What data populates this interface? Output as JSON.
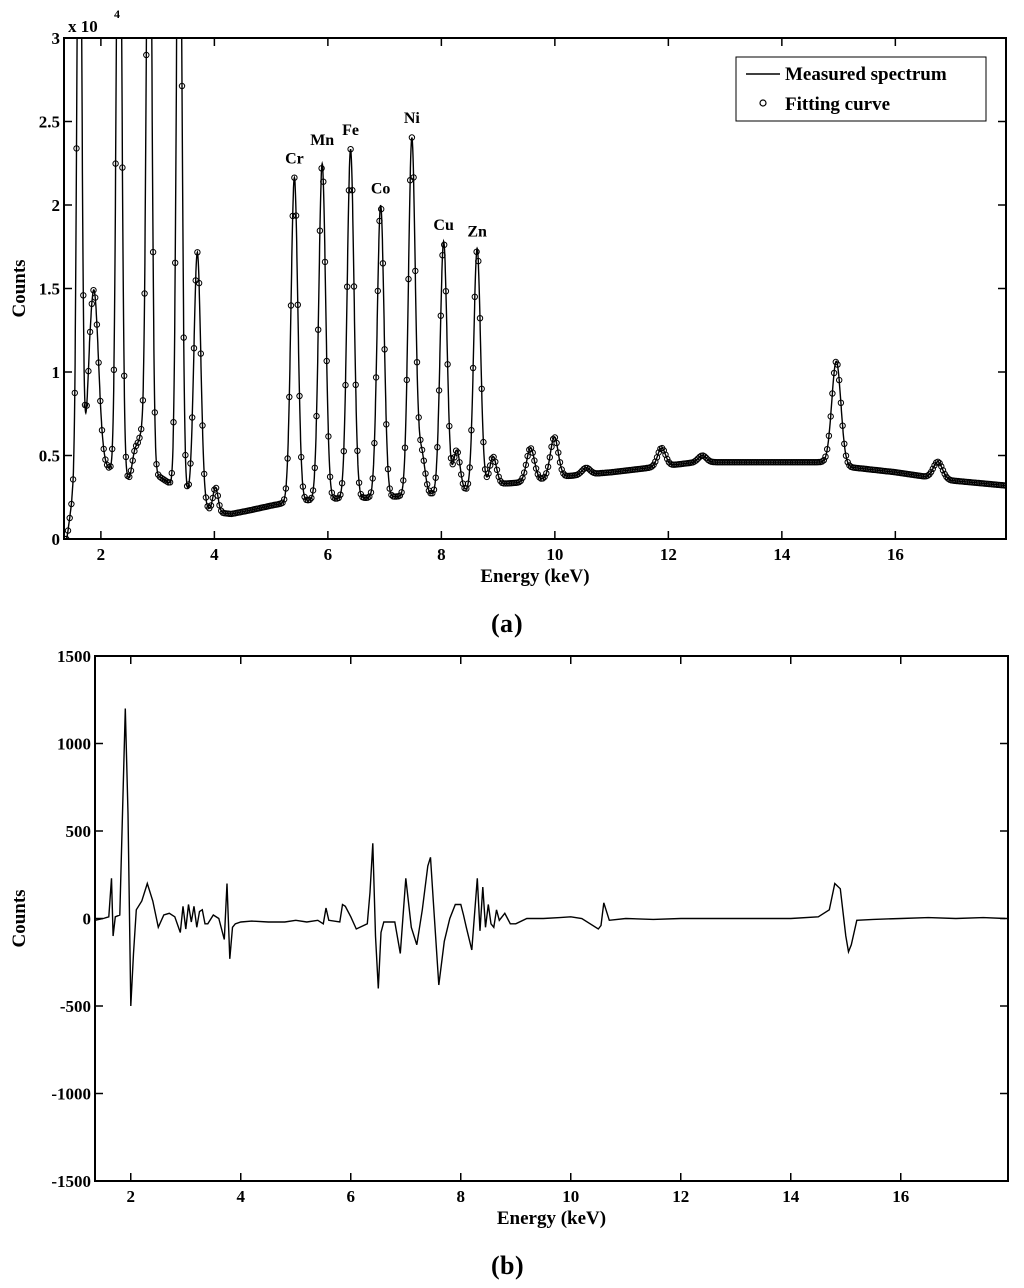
{
  "chart_data": [
    {
      "panel": "(a)",
      "type": "line",
      "xlabel": "Energy (keV)",
      "ylabel": "Counts",
      "exponent_label": "x 10",
      "exponent_power": "4",
      "xlim": [
        1.35,
        17.95
      ],
      "ylim": [
        0,
        30000
      ],
      "xticks": [
        2,
        4,
        6,
        8,
        10,
        12,
        14,
        16
      ],
      "yticks": [
        0,
        5000,
        10000,
        15000,
        20000,
        25000,
        30000
      ],
      "ytick_labels": [
        "0",
        "0.5",
        "1",
        "1.5",
        "2",
        "2.5",
        "3"
      ],
      "legend": {
        "position": "top-right",
        "entries": [
          {
            "label": "Measured spectrum",
            "marker": "line"
          },
          {
            "label": "Fitting curve",
            "marker": "circle"
          }
        ]
      },
      "background": [
        [
          1.4,
          0
        ],
        [
          1.5,
          2500
        ],
        [
          1.6,
          2900
        ],
        [
          1.8,
          6000
        ],
        [
          2.0,
          4500
        ],
        [
          2.5,
          3500
        ],
        [
          3.0,
          3800
        ],
        [
          3.5,
          2700
        ],
        [
          3.8,
          1900
        ],
        [
          4.0,
          1600
        ],
        [
          4.3,
          1500
        ],
        [
          4.6,
          1700
        ],
        [
          5.0,
          2000
        ],
        [
          5.3,
          2200
        ],
        [
          5.6,
          2300
        ],
        [
          6.0,
          2400
        ],
        [
          7.0,
          2500
        ],
        [
          8.0,
          2700
        ],
        [
          8.5,
          2900
        ],
        [
          9.0,
          3300
        ],
        [
          9.5,
          3400
        ],
        [
          10.0,
          3700
        ],
        [
          11.0,
          4000
        ],
        [
          12.0,
          4400
        ],
        [
          12.5,
          4600
        ],
        [
          13.0,
          4600
        ],
        [
          14.0,
          4600
        ],
        [
          14.7,
          4600
        ],
        [
          15.2,
          4300
        ],
        [
          16.0,
          4000
        ],
        [
          17.0,
          3500
        ],
        [
          17.95,
          3200
        ]
      ],
      "peaks": [
        {
          "energy": 1.62,
          "height": 45000,
          "sigma": 0.04
        },
        {
          "energy": 1.88,
          "height": 9500,
          "sigma": 0.08
        },
        {
          "energy": 2.32,
          "height": 45000,
          "sigma": 0.045
        },
        {
          "energy": 2.6,
          "height": 1500,
          "sigma": 0.05
        },
        {
          "energy": 2.72,
          "height": 2500,
          "sigma": 0.06
        },
        {
          "energy": 2.85,
          "height": 45000,
          "sigma": 0.045
        },
        {
          "energy": 3.38,
          "height": 45000,
          "sigma": 0.045
        },
        {
          "energy": 3.7,
          "height": 15000,
          "sigma": 0.06
        },
        {
          "energy": 4.02,
          "height": 1500,
          "sigma": 0.045
        },
        {
          "energy": 5.41,
          "height": 19400,
          "sigma": 0.06
        },
        {
          "energy": 5.9,
          "height": 20100,
          "sigma": 0.06
        },
        {
          "energy": 6.4,
          "height": 20900,
          "sigma": 0.06
        },
        {
          "energy": 6.93,
          "height": 17500,
          "sigma": 0.06
        },
        {
          "energy": 7.48,
          "height": 21400,
          "sigma": 0.06
        },
        {
          "energy": 7.65,
          "height": 2500,
          "sigma": 0.06
        },
        {
          "energy": 8.04,
          "height": 15100,
          "sigma": 0.06
        },
        {
          "energy": 8.27,
          "height": 2500,
          "sigma": 0.06
        },
        {
          "energy": 8.63,
          "height": 14400,
          "sigma": 0.06
        },
        {
          "energy": 8.91,
          "height": 1700,
          "sigma": 0.06
        },
        {
          "energy": 9.57,
          "height": 2000,
          "sigma": 0.07
        },
        {
          "energy": 9.99,
          "height": 2400,
          "sigma": 0.07
        },
        {
          "energy": 10.55,
          "height": 400,
          "sigma": 0.07
        },
        {
          "energy": 11.88,
          "height": 1100,
          "sigma": 0.07
        },
        {
          "energy": 12.6,
          "height": 400,
          "sigma": 0.07
        },
        {
          "energy": 14.96,
          "height": 6200,
          "sigma": 0.08
        },
        {
          "energy": 16.75,
          "height": 1000,
          "sigma": 0.08
        }
      ],
      "element_labels": [
        {
          "label": "Cr",
          "energy": 5.41,
          "counts": 22500
        },
        {
          "label": "Mn",
          "energy": 5.9,
          "counts": 23600
        },
        {
          "label": "Fe",
          "energy": 6.4,
          "counts": 24200
        },
        {
          "label": "Co",
          "energy": 6.93,
          "counts": 20700
        },
        {
          "label": "Ni",
          "energy": 7.48,
          "counts": 24900
        },
        {
          "label": "Cu",
          "energy": 8.04,
          "counts": 18500
        },
        {
          "label": "Zn",
          "energy": 8.63,
          "counts": 18100
        }
      ]
    },
    {
      "panel": "(b)",
      "type": "line",
      "xlabel": "Energy (keV)",
      "ylabel": "Counts",
      "xlim": [
        1.35,
        17.95
      ],
      "ylim": [
        -1500,
        1500
      ],
      "xticks": [
        2,
        4,
        6,
        8,
        10,
        12,
        14,
        16
      ],
      "yticks": [
        -1500,
        -1000,
        -500,
        0,
        500,
        1000,
        1500
      ],
      "ytick_labels": [
        "-1500",
        "-1000",
        "-500",
        "0",
        "500",
        "1000",
        "1500"
      ],
      "series": [
        {
          "x": [
            1.35,
            1.5,
            1.6,
            1.65,
            1.68,
            1.72,
            1.8,
            1.85,
            1.9,
            1.95,
            2.0,
            2.05,
            2.1,
            2.2,
            2.3,
            2.4,
            2.5,
            2.6,
            2.7,
            2.8,
            2.9,
            2.95,
            3.0,
            3.05,
            3.1,
            3.15,
            3.2,
            3.25,
            3.3,
            3.35,
            3.4,
            3.5,
            3.6,
            3.7,
            3.75,
            3.8,
            3.85,
            3.9,
            4.0,
            4.2,
            4.5,
            4.8,
            5.0,
            5.2,
            5.4,
            5.5,
            5.55,
            5.6,
            5.8,
            5.85,
            5.9,
            6.0,
            6.1,
            6.3,
            6.35,
            6.4,
            6.45,
            6.5,
            6.55,
            6.6,
            6.8,
            6.9,
            7.0,
            7.1,
            7.2,
            7.3,
            7.4,
            7.45,
            7.5,
            7.6,
            7.7,
            7.8,
            7.9,
            8.0,
            8.05,
            8.1,
            8.2,
            8.3,
            8.35,
            8.4,
            8.45,
            8.5,
            8.55,
            8.6,
            8.65,
            8.7,
            8.8,
            8.9,
            9.0,
            9.2,
            9.5,
            9.8,
            10.0,
            10.2,
            10.5,
            10.55,
            10.6,
            10.7,
            11.0,
            11.5,
            12.0,
            12.5,
            13.0,
            13.5,
            14.0,
            14.5,
            14.7,
            14.8,
            14.9,
            15.0,
            15.05,
            15.1,
            15.2,
            15.5,
            16.0,
            16.5,
            17.0,
            17.5,
            17.9
          ],
          "y": [
            -10,
            0,
            10,
            230,
            -100,
            10,
            20,
            600,
            1200,
            600,
            -500,
            -200,
            50,
            100,
            200,
            100,
            -50,
            20,
            30,
            10,
            -80,
            70,
            -60,
            80,
            -20,
            70,
            -50,
            40,
            50,
            -30,
            -30,
            20,
            0,
            -120,
            200,
            -230,
            -50,
            -30,
            -20,
            -15,
            -20,
            -20,
            -10,
            -20,
            -10,
            -30,
            60,
            -10,
            -20,
            80,
            70,
            10,
            -60,
            -30,
            150,
            430,
            -100,
            -400,
            -80,
            -20,
            -20,
            -200,
            230,
            -50,
            -150,
            50,
            300,
            350,
            100,
            -380,
            -130,
            0,
            80,
            80,
            20,
            -50,
            -180,
            230,
            -70,
            180,
            -50,
            80,
            -30,
            -50,
            50,
            -10,
            30,
            -30,
            -30,
            0,
            0,
            5,
            10,
            0,
            -60,
            -40,
            90,
            -10,
            0,
            -5,
            0,
            0,
            0,
            0,
            0,
            10,
            50,
            200,
            170,
            -100,
            -190,
            -150,
            -10,
            -5,
            0,
            5,
            0,
            5,
            0
          ]
        }
      ]
    }
  ],
  "captions": {
    "a": "a",
    "b": "b"
  }
}
